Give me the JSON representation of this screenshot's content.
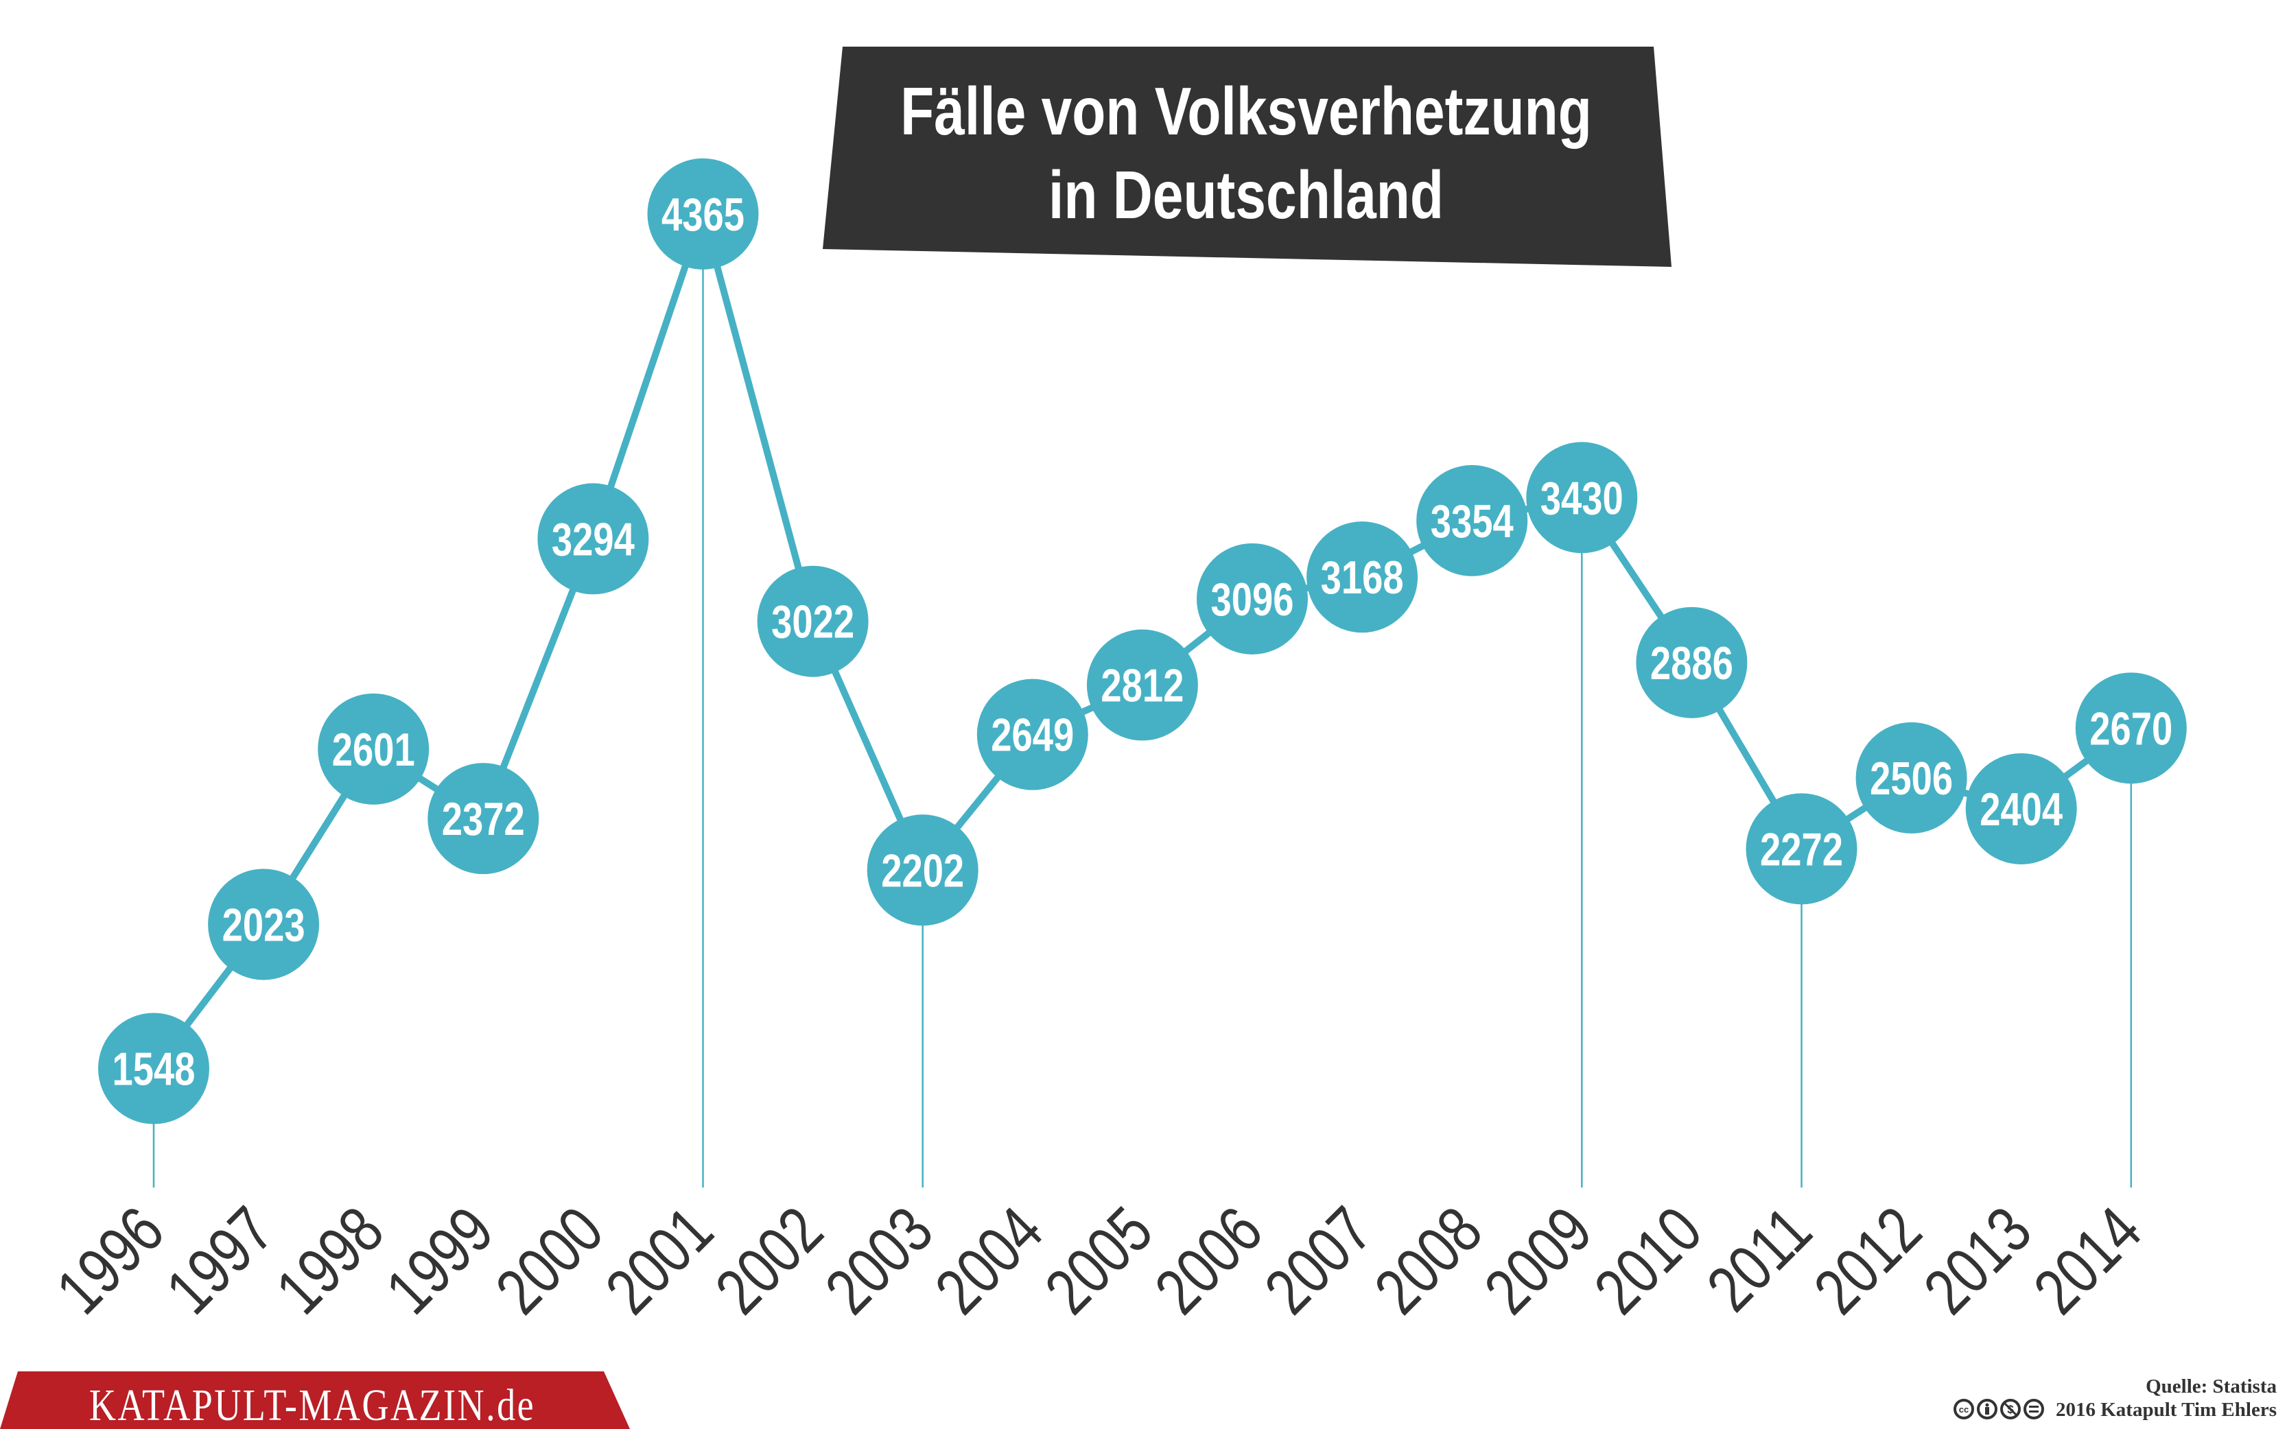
{
  "chart_data": {
    "type": "line",
    "title": [
      "Fälle von Volksverhetzung",
      "in Deutschland"
    ],
    "categories": [
      "1996",
      "1997",
      "1998",
      "1999",
      "2000",
      "2001",
      "2002",
      "2003",
      "2004",
      "2005",
      "2006",
      "2007",
      "2008",
      "2009",
      "2010",
      "2011",
      "2012",
      "2013",
      "2014"
    ],
    "values": [
      1548,
      2023,
      2601,
      2372,
      3294,
      4365,
      3022,
      2202,
      2649,
      2812,
      3096,
      3168,
      3354,
      3430,
      2886,
      2272,
      2506,
      2404,
      2670
    ],
    "drop_lines_at": [
      "1996",
      "2001",
      "2003",
      "2009",
      "2011",
      "2014"
    ],
    "data_labels": true,
    "grid": false,
    "colors": {
      "series": "#46b1c4",
      "title_bg": "#333333",
      "text": "#333333",
      "logo_bg": "#b91f25"
    }
  },
  "source": "Quelle: Statista",
  "copyright": "2016 Katapult Tim Ehlers",
  "license_icons": [
    "cc-icon",
    "by-icon",
    "nc-icon",
    "nd-icon"
  ],
  "logo": "KATAPULT-MAGAZIN.de"
}
